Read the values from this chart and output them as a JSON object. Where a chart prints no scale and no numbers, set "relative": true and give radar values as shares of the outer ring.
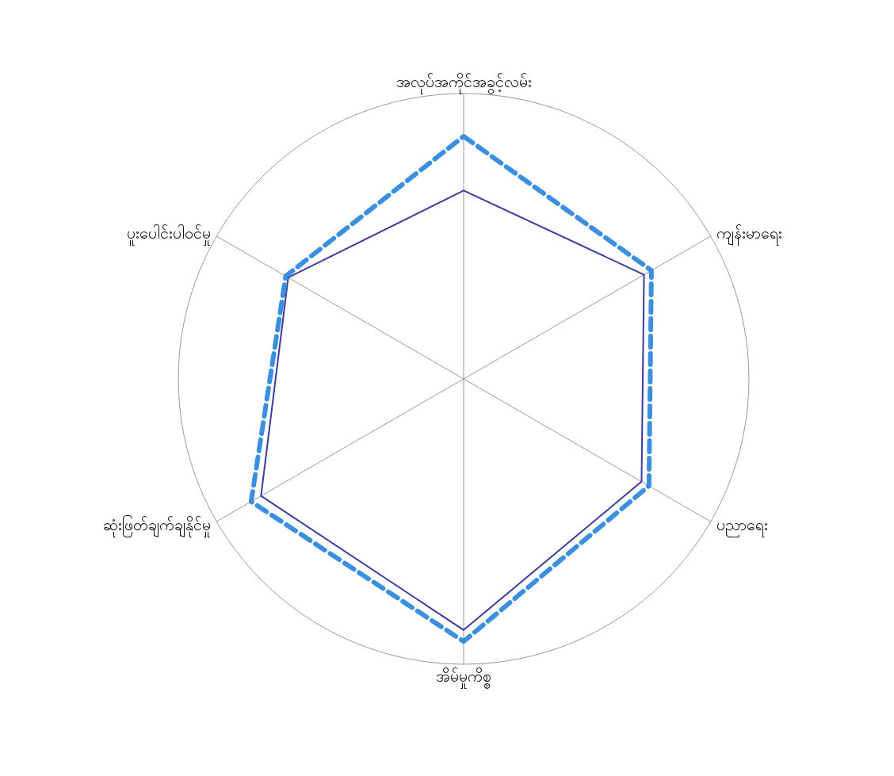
{
  "chart_data": {
    "type": "radar",
    "relative": true,
    "grid": true,
    "categories": [
      "အလုပ်အကိုင်အခွင့်လမ်း",
      "ကျန်းမာရေး",
      "ပညာရေး",
      "အိမ်မှုကိစ္စ",
      "ဆုံးဖြတ်ချက်ချနိုင်မှု",
      "ပူးပေါင်းပါဝင်မှု"
    ],
    "series": [
      {
        "color": "#3a3aa0",
        "line_style": "solid",
        "values": [
          0.66,
          0.73,
          0.72,
          0.88,
          0.82,
          0.71
        ]
      },
      {
        "color": "#3a8fe0",
        "line_style": "dashed",
        "values": [
          0.85,
          0.76,
          0.75,
          0.92,
          0.86,
          0.72
        ]
      }
    ]
  }
}
